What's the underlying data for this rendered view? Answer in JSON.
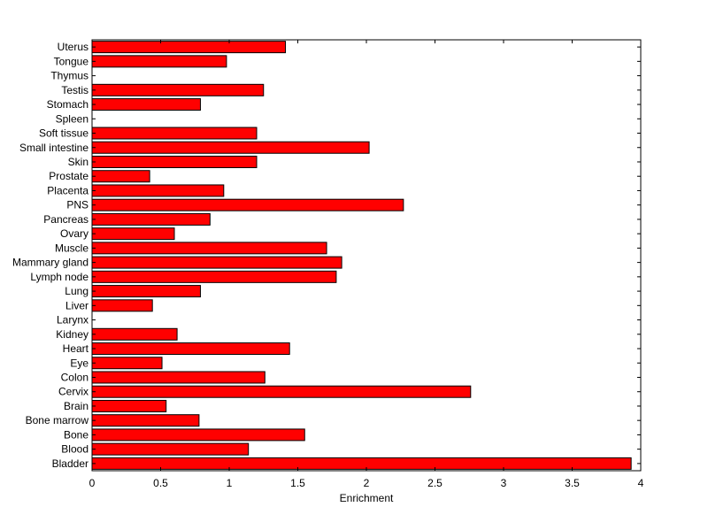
{
  "chart_data": {
    "type": "bar",
    "orientation": "horizontal",
    "title": "",
    "xlabel": "Enrichment",
    "ylabel": "",
    "xlim": [
      0,
      4
    ],
    "xticks": [
      0,
      0.5,
      1,
      1.5,
      2,
      2.5,
      3,
      3.5,
      4
    ],
    "xtick_labels": [
      "0",
      "0.5",
      "1",
      "1.5",
      "2",
      "2.5",
      "3",
      "3.5",
      "4"
    ],
    "bar_color": "#ff0000",
    "edge_color": "#000000",
    "grid": false,
    "categories": [
      "Bladder",
      "Blood",
      "Bone",
      "Bone marrow",
      "Brain",
      "Cervix",
      "Colon",
      "Eye",
      "Heart",
      "Kidney",
      "Larynx",
      "Liver",
      "Lung",
      "Lymph node",
      "Mammary gland",
      "Muscle",
      "Ovary",
      "Pancreas",
      "PNS",
      "Placenta",
      "Prostate",
      "Skin",
      "Small intestine",
      "Soft tissue",
      "Spleen",
      "Stomach",
      "Testis",
      "Thymus",
      "Tongue",
      "Uterus"
    ],
    "values": [
      3.93,
      1.14,
      1.55,
      0.78,
      0.54,
      2.76,
      1.26,
      0.51,
      1.44,
      0.62,
      0,
      0.44,
      0.79,
      1.78,
      1.82,
      1.71,
      0.6,
      0.86,
      2.27,
      0.96,
      0.42,
      1.2,
      2.02,
      1.2,
      0,
      0.79,
      1.25,
      0,
      0.98,
      1.41
    ]
  }
}
